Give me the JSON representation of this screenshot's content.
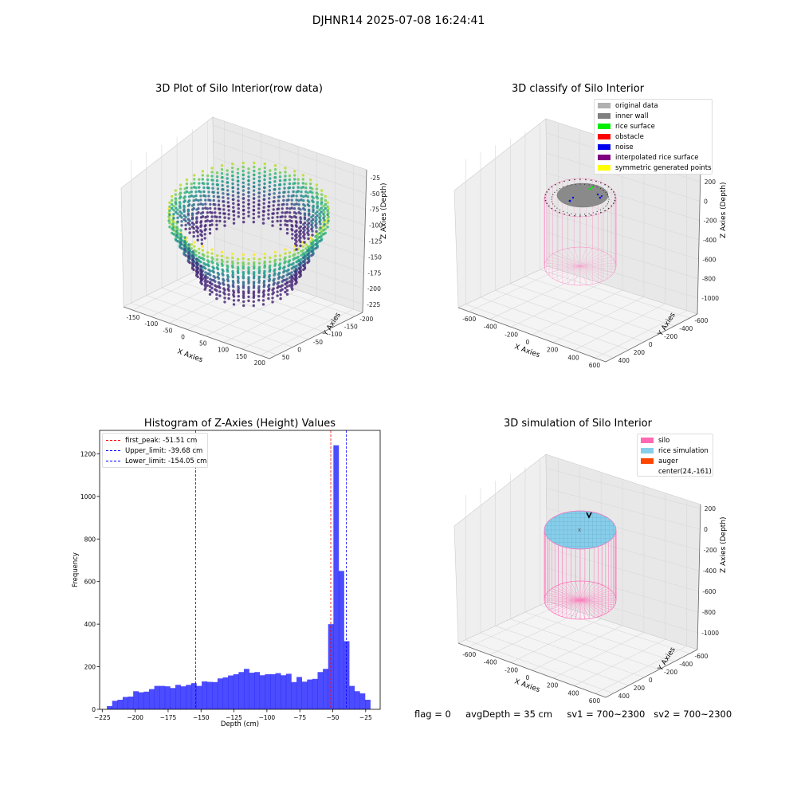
{
  "suptitle": "DJHNR14 2025-07-08 16:24:41",
  "panels": {
    "raw": {
      "title": "3D Plot of Silo Interior(row data)",
      "xlabel": "X Axies",
      "ylabel": "Y Axies",
      "zlabel": "Z Axies (Depth)",
      "xticks": [
        "-150",
        "-100",
        "-50",
        "0",
        "50",
        "100",
        "150",
        "200"
      ],
      "yticks": [
        "50",
        "0",
        "-50",
        "-100",
        "-150",
        "-200"
      ],
      "zticks": [
        "-25",
        "-50",
        "-75",
        "-100",
        "-125",
        "-150",
        "-175",
        "-200",
        "-225"
      ]
    },
    "classify": {
      "title": "3D classify of Silo Interior",
      "xlabel": "X Axies",
      "ylabel": "Y Axies",
      "zlabel": "Z Axies (Depth)",
      "xticks": [
        "-600",
        "-400",
        "-200",
        "0",
        "200",
        "400",
        "600"
      ],
      "yticks": [
        "400",
        "200",
        "0",
        "-200",
        "-400",
        "-600"
      ],
      "zticks": [
        "200",
        "0",
        "-200",
        "-400",
        "-600",
        "-800",
        "-1000"
      ],
      "legend": [
        {
          "label": "original data",
          "color": "#b0b0b0"
        },
        {
          "label": "inner wall",
          "color": "#808080"
        },
        {
          "label": "rice surface",
          "color": "#00ee00"
        },
        {
          "label": "obstacle",
          "color": "#ff0000"
        },
        {
          "label": "noise",
          "color": "#0000ee"
        },
        {
          "label": "interpolated rice surface",
          "color": "#800080"
        },
        {
          "label": "symmetric generated points",
          "color": "#ffff00"
        }
      ]
    },
    "simulation": {
      "title": "3D simulation of Silo Interior",
      "xlabel": "X Axies",
      "ylabel": "Y Axies",
      "zlabel": "Z Axies (Depth)",
      "xticks": [
        "-600",
        "-400",
        "-200",
        "0",
        "200",
        "400",
        "600"
      ],
      "yticks": [
        "400",
        "200",
        "0",
        "-200",
        "-400",
        "-600"
      ],
      "zticks": [
        "200",
        "0",
        "-200",
        "-400",
        "-600",
        "-800",
        "-1000"
      ],
      "legend": [
        {
          "label": "silo",
          "color": "#ff69b4"
        },
        {
          "label": "rice simulation",
          "color": "#87ceeb"
        },
        {
          "label": "auger",
          "color": "#ff4500"
        },
        {
          "label": "center(24,-161)",
          "color": ""
        }
      ]
    }
  },
  "status_text": "flag = 0     avgDepth = 35 cm     sv1 = 700~2300   sv2 = 700~2300",
  "chart_data": {
    "type": "bar",
    "title": "Histogram of Z-Axies (Height) Values",
    "xlabel": "Depth (cm)",
    "ylabel": "Frequency",
    "xlim": [
      -227,
      -14
    ],
    "ylim": [
      0,
      1310
    ],
    "xticks": [
      -225,
      -200,
      -175,
      -150,
      -125,
      -100,
      -75,
      -50,
      -25
    ],
    "yticks": [
      0,
      200,
      400,
      600,
      800,
      1000,
      1200
    ],
    "bin_start": -221.5,
    "bin_width": 4.0,
    "values": [
      15,
      40,
      45,
      58,
      60,
      85,
      80,
      83,
      95,
      110,
      110,
      108,
      100,
      115,
      108,
      115,
      123,
      110,
      131,
      129,
      128,
      145,
      150,
      159,
      165,
      175,
      190,
      172,
      175,
      160,
      165,
      165,
      170,
      160,
      167,
      128,
      152,
      130,
      140,
      143,
      175,
      190,
      400,
      1240,
      650,
      320,
      110,
      85,
      75,
      45
    ],
    "bar_color": "#0000ff",
    "lines": [
      {
        "name": "first_peak",
        "value": -51.51,
        "color": "#ff0000",
        "label": "first_peak: -51.51 cm"
      },
      {
        "name": "Upper_limit",
        "value": -39.68,
        "color": "#0000ff",
        "label": "Upper_limit: -39.68 cm"
      },
      {
        "name": "Lower_limit",
        "value": -154.05,
        "color": "#0000ff",
        "label": "Lower_limit: -154.05 cm"
      }
    ],
    "legend_position": "top-left"
  }
}
